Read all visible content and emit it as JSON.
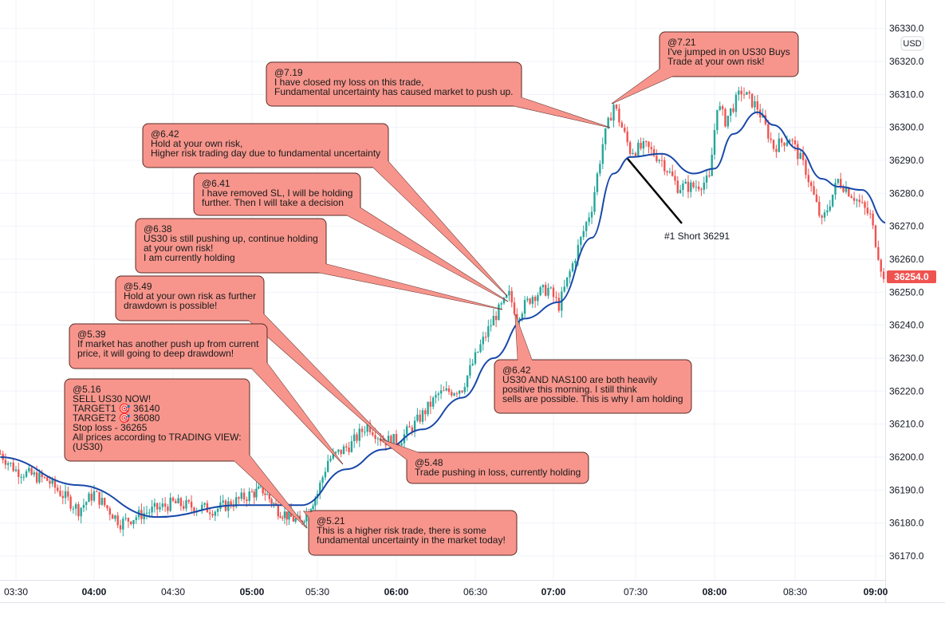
{
  "chart_data": {
    "type": "candlestick",
    "symbol": "US30",
    "interval_minutes": 1,
    "currency": "USD",
    "last_price": "36254.0",
    "ylim": [
      36165,
      36330
    ],
    "y_ticks": [
      "36330.0",
      "36320.0",
      "36310.0",
      "36300.0",
      "36290.0",
      "36280.0",
      "36270.0",
      "36260.0",
      "36250.0",
      "36240.0",
      "36230.0",
      "36220.0",
      "36210.0",
      "36200.0",
      "36190.0",
      "36180.0",
      "36170.0"
    ],
    "x_ticks": [
      "03:30",
      "04:00",
      "04:30",
      "05:00",
      "05:30",
      "06:00",
      "06:30",
      "07:00",
      "07:30",
      "08:00",
      "08:30",
      "09:00"
    ],
    "x_ticks_bold": [
      "04:00",
      "05:00",
      "06:00",
      "07:00",
      "08:00",
      "09:00"
    ],
    "price_path": [
      [
        "03:24",
        36201
      ],
      [
        "03:30",
        36196
      ],
      [
        "03:42",
        36193
      ],
      [
        "03:54",
        36184
      ],
      [
        "04:00",
        36189
      ],
      [
        "04:10",
        36180
      ],
      [
        "04:19",
        36183
      ],
      [
        "04:30",
        36186
      ],
      [
        "04:37",
        36185
      ],
      [
        "04:46",
        36184
      ],
      [
        "04:55",
        36187
      ],
      [
        "05:00",
        36189
      ],
      [
        "05:05",
        36190
      ],
      [
        "05:12",
        36184
      ],
      [
        "05:22",
        36180
      ],
      [
        "05:30",
        36189
      ],
      [
        "05:34",
        36199
      ],
      [
        "05:43",
        36204
      ],
      [
        "05:49",
        36210
      ],
      [
        "05:55",
        36205
      ],
      [
        "06:01",
        36205
      ],
      [
        "06:07",
        36210
      ],
      [
        "06:16",
        36219
      ],
      [
        "06:25",
        36221
      ],
      [
        "06:31",
        36232
      ],
      [
        "06:37",
        36242
      ],
      [
        "06:43",
        36249
      ],
      [
        "06:46",
        36243
      ],
      [
        "06:52",
        36249
      ],
      [
        "06:58",
        36251
      ],
      [
        "07:02",
        36246
      ],
      [
        "07:08",
        36261
      ],
      [
        "07:14",
        36276
      ],
      [
        "07:18",
        36295
      ],
      [
        "07:22",
        36307
      ],
      [
        "07:28",
        36293
      ],
      [
        "07:34",
        36294
      ],
      [
        "07:40",
        36290
      ],
      [
        "07:46",
        36282
      ],
      [
        "07:52",
        36282
      ],
      [
        "07:58",
        36284
      ],
      [
        "08:01",
        36307
      ],
      [
        "08:04",
        36302
      ],
      [
        "08:10",
        36311
      ],
      [
        "08:16",
        36306
      ],
      [
        "08:22",
        36294
      ],
      [
        "08:28",
        36297
      ],
      [
        "08:34",
        36287
      ],
      [
        "08:40",
        36271
      ],
      [
        "08:46",
        36284
      ],
      [
        "08:52",
        36279
      ],
      [
        "08:58",
        36273
      ],
      [
        "09:03",
        36254
      ]
    ],
    "moving_average": [
      [
        "03:24",
        36200
      ],
      [
        "03:54",
        36191.5
      ],
      [
        "04:24",
        36181.8
      ],
      [
        "04:55",
        36185.4
      ],
      [
        "05:23",
        36185.4
      ],
      [
        "05:41",
        36196.3
      ],
      [
        "05:55",
        36202.3
      ],
      [
        "06:10",
        36208.4
      ],
      [
        "06:25",
        36218
      ],
      [
        "06:37",
        36230
      ],
      [
        "06:49",
        36242
      ],
      [
        "07:02",
        36247
      ],
      [
        "07:14",
        36266.5
      ],
      [
        "07:22",
        36286
      ],
      [
        "07:28",
        36291
      ],
      [
        "07:40",
        36292
      ],
      [
        "07:52",
        36286
      ],
      [
        "08:00",
        36287.5
      ],
      [
        "08:07",
        36298
      ],
      [
        "08:16",
        36304.6
      ],
      [
        "08:22",
        36300.7
      ],
      [
        "08:31",
        36293.5
      ],
      [
        "08:40",
        36284.4
      ],
      [
        "08:46",
        36282
      ],
      [
        "08:55",
        36281
      ],
      [
        "09:04",
        36271
      ]
    ],
    "colors": {
      "up": "#26a69a",
      "down": "#ef5350",
      "ma": "#1848a8",
      "callout_fill": "#f7958c",
      "callout_border": "#5a2a26",
      "grid": "#f0f3fa",
      "last_price_bg": "#ef5350"
    },
    "trade_marker": {
      "label": "#1 Short 36291",
      "price": 36291
    },
    "callouts": [
      {
        "lines": [
          "@7.19",
          "I have closed my  loss on this trade,",
          "Fundamental uncertainty has caused market to push up."
        ]
      },
      {
        "lines": [
          "@7.21",
          "I've jumped in on US30 Buys",
          "Trade at your own risk!"
        ]
      },
      {
        "lines": [
          "@6.42",
          "Hold at your own risk,",
          "Higher risk trading day due to fundamental uncertainty"
        ]
      },
      {
        "lines": [
          "@6.41",
          "I have removed SL, I will be holding",
          "further. Then I will take a decision"
        ]
      },
      {
        "lines": [
          "@6.38",
          "US30 is still pushing up, continue holding",
          "at your own risk!",
          "I am currently holding"
        ]
      },
      {
        "lines": [
          "@5.49",
          "Hold at your own risk as further",
          "drawdown is possible!"
        ]
      },
      {
        "lines": [
          "@5.39",
          "If market has another push up from current",
          "price, it will going to deep drawdown!"
        ]
      },
      {
        "lines": [
          "@5.16",
          "SELL US30 NOW!",
          "TARGET1 🎯 36140",
          "TARGET2 🎯 36080",
          "Stop loss  - 36265",
          "All prices according to TRADING VIEW:",
          "(US30)"
        ]
      },
      {
        "lines": [
          "@5.21",
          "This is a higher risk trade, there is some",
          " fundamental uncertainty in the market today!"
        ]
      },
      {
        "lines": [
          "@5.48",
          "Trade pushing in loss, currently holding"
        ]
      },
      {
        "lines": [
          "@6.42",
          "US30 AND NAS100 are both heavily",
          "positive this morning. I still think",
          "sells are possible. This is why I am holding"
        ]
      }
    ]
  }
}
